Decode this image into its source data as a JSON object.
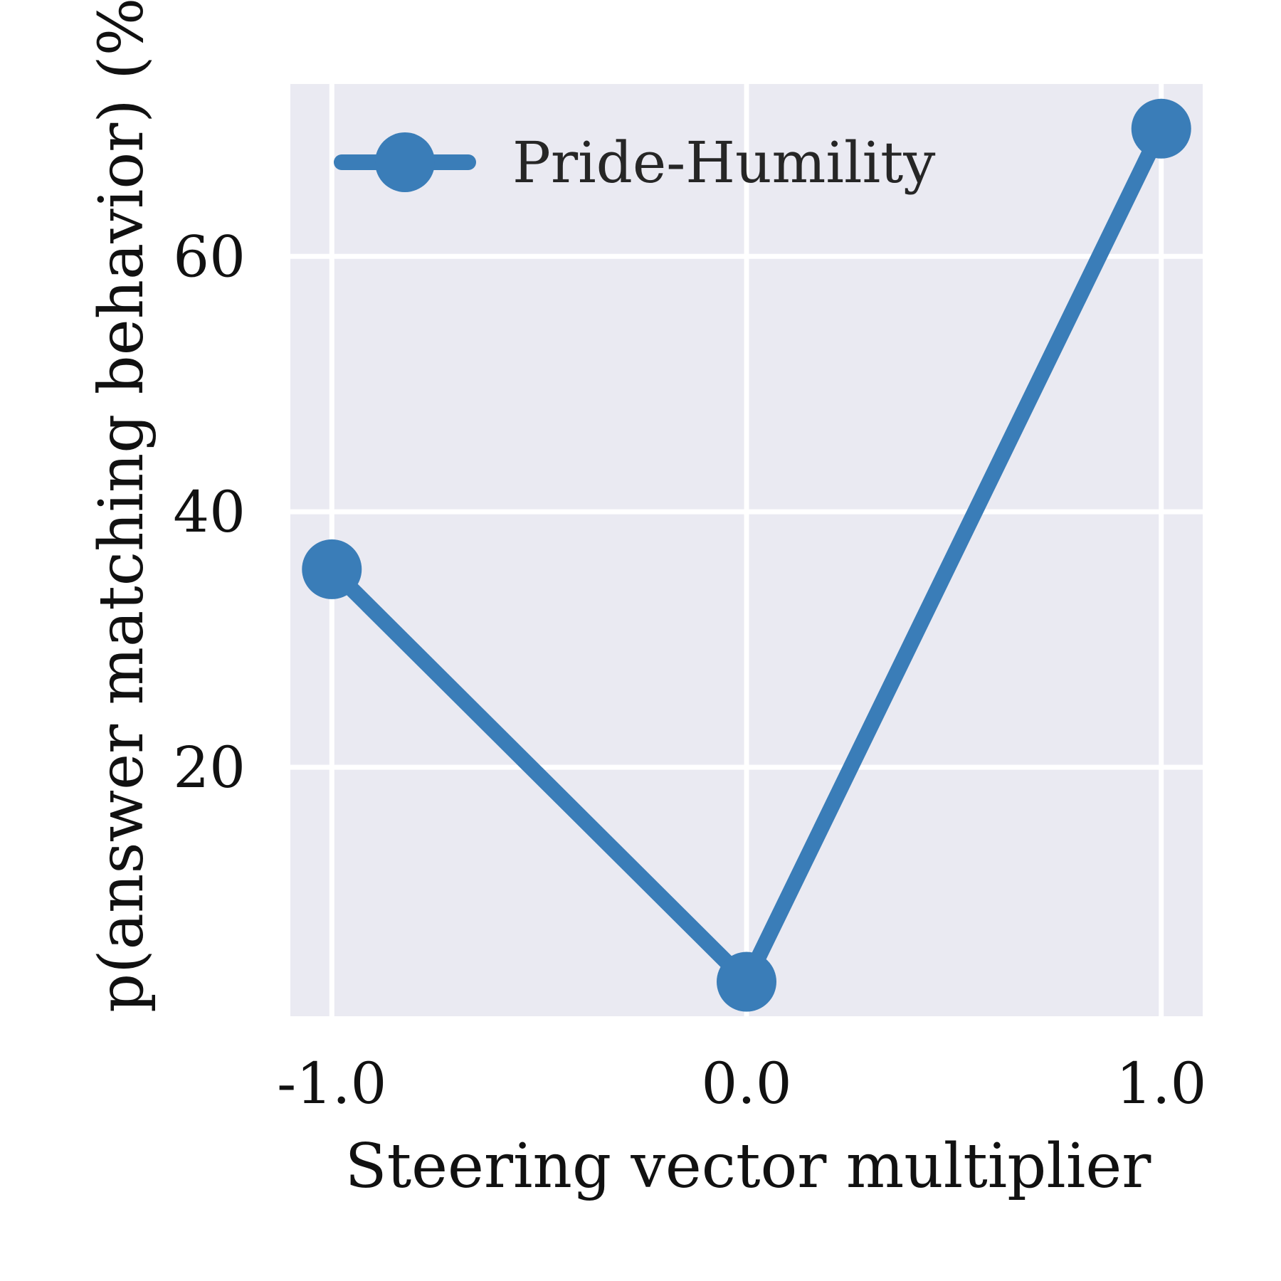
{
  "chart_data": {
    "type": "line",
    "title": "",
    "xlabel": "Steering vector multiplier",
    "ylabel": "p(answer matching behavior) (%)",
    "x": [
      -1.0,
      0.0,
      1.0
    ],
    "x_tick_labels": [
      "-1.0",
      "0.0",
      "1.0"
    ],
    "y_ticks": [
      20,
      40,
      60
    ],
    "y_tick_labels": [
      "20",
      "40",
      "60"
    ],
    "xlim": [
      -1.1,
      1.1
    ],
    "ylim": [
      0.5,
      73.5
    ],
    "grid": true,
    "legend_position": "top-left",
    "series": [
      {
        "name": "Pride-Humility",
        "values": [
          35.5,
          3.2,
          70.0
        ],
        "color": "#3a7db8",
        "marker": "circle"
      }
    ],
    "background_color": "#eaeaf2",
    "grid_color": "#ffffff"
  }
}
